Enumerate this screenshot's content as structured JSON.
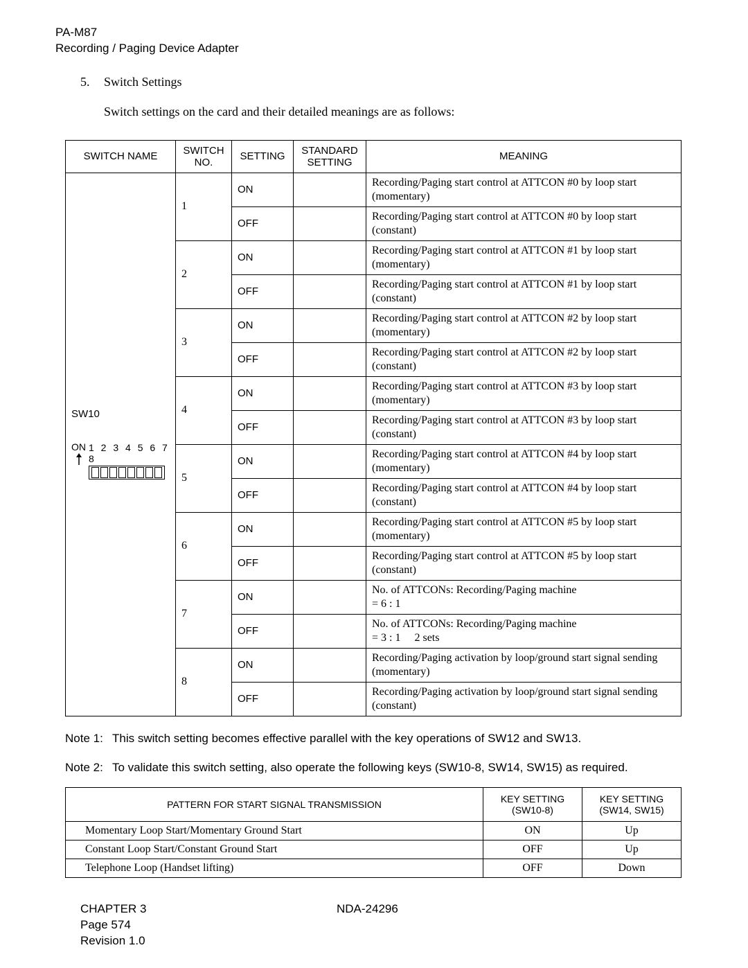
{
  "header": {
    "l1": "PA-M87",
    "l2": "Recording / Paging Device Adapter"
  },
  "section": {
    "num": "5.",
    "title": "Switch Settings",
    "intro": "Switch settings on the card and their detailed meanings are as follows:"
  },
  "sw_table": {
    "headers": {
      "name": "SWITCH NAME",
      "no_l1": "SWITCH",
      "no_l2": "NO.",
      "setting": "SETTING",
      "std_l1": "STANDARD",
      "std_l2": "SETTING",
      "meaning": "MEANING"
    },
    "name_label": "SW10",
    "dip": {
      "on_label": "ON",
      "numbers": "1 2 3 4 5 6 7 8"
    },
    "rows": [
      {
        "no": "1",
        "on": "Recording/Paging start control at ATTCON #0 by loop start (momentary)",
        "off": "Recording/Paging start control at ATTCON #0 by loop start (constant)"
      },
      {
        "no": "2",
        "on": "Recording/Paging start control at ATTCON #1 by loop start (momentary)",
        "off": "Recording/Paging start control at ATTCON #1 by loop start (constant)"
      },
      {
        "no": "3",
        "on": "Recording/Paging start control at ATTCON #2 by loop start (momentary)",
        "off": "Recording/Paging start control at ATTCON #2 by loop start (constant)"
      },
      {
        "no": "4",
        "on": "Recording/Paging start control at ATTCON #3 by loop start (momentary)",
        "off": "Recording/Paging start control at ATTCON #3 by loop start (constant)"
      },
      {
        "no": "5",
        "on": "Recording/Paging start control at ATTCON #4 by loop start (momentary)",
        "off": "Recording/Paging start control at ATTCON #4 by loop start (constant)"
      },
      {
        "no": "6",
        "on": "Recording/Paging start control at ATTCON #5 by loop start (momentary)",
        "off": "Recording/Paging start control at ATTCON #5 by loop start (constant)"
      },
      {
        "no": "7",
        "on": "No. of ATTCONs: Recording/Paging machine\n= 6 : 1",
        "off": "No. of ATTCONs: Recording/Paging machine\n= 3 : 1  2 sets"
      },
      {
        "no": "8",
        "on": "Recording/Paging activation by loop/ground start signal sending (momentary)",
        "off": "Recording/Paging activation by loop/ground start signal sending (constant)"
      }
    ],
    "setting_on": "ON",
    "setting_off": "OFF"
  },
  "notes": {
    "n1_label": "Note 1:",
    "n1": "This switch setting becomes effective parallel with the key operations of SW12 and SW13.",
    "n2_label": "Note 2:",
    "n2": "To validate this switch setting, also operate the following keys (SW10-8, SW14, SW15) as required."
  },
  "pt_table": {
    "headers": {
      "pattern": "PATTERN FOR START SIGNAL TRANSMISSION",
      "k1_l1": "KEY SETTING",
      "k1_l2": "(SW10-8)",
      "k2_l1": "KEY SETTING",
      "k2_l2": "(SW14, SW15)"
    },
    "rows": [
      {
        "p": "Momentary Loop Start/Momentary Ground Start",
        "k1": "ON",
        "k2": "Up"
      },
      {
        "p": "Constant Loop Start/Constant Ground Start",
        "k1": "OFF",
        "k2": "Up"
      },
      {
        "p": "Telephone Loop (Handset lifting)",
        "k1": "OFF",
        "k2": "Down"
      }
    ]
  },
  "footer": {
    "chapter": "CHAPTER 3",
    "doc": "NDA-24296",
    "page": "Page 574",
    "rev": "Revision 1.0"
  }
}
